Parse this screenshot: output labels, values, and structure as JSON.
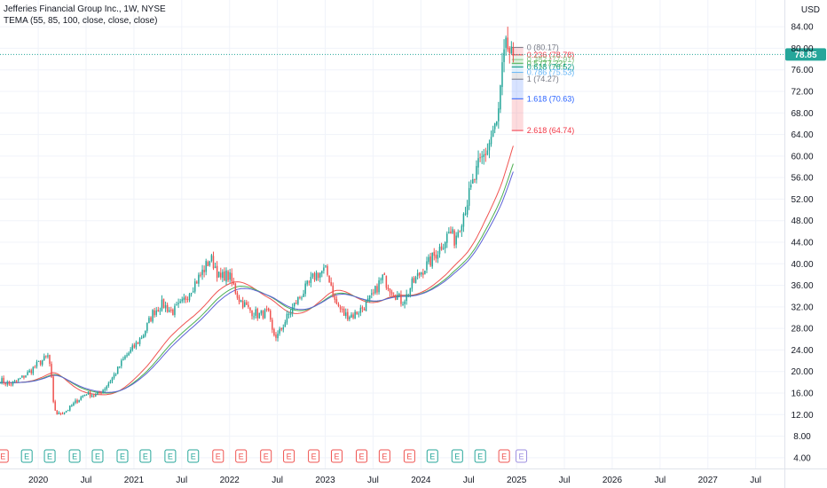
{
  "legend": {
    "symbol_line": "Jefferies Financial Group Inc., 1W, NYSE",
    "indicator_line": "TEMA (55, 85, 100, close, close, close)"
  },
  "currency": "USD",
  "colors": {
    "up": "#26a69a",
    "down": "#ef5350",
    "tema_55": "#f05350",
    "tema_85": "#4caf50",
    "tema_100": "#5b61d6",
    "price_line": "#26a69a"
  },
  "chart_data": {
    "type": "candlestick",
    "title": "Jefferies Financial Group Inc., 1W, NYSE",
    "xlabel": "",
    "ylabel": "USD",
    "ylim": [
      2,
      86
    ],
    "y_ticks": [
      4,
      8,
      12,
      16,
      20,
      24,
      28,
      32,
      36,
      40,
      44,
      48,
      52,
      56,
      60,
      64,
      68,
      72,
      76,
      80,
      84
    ],
    "y_tick_labels": [
      "4.00",
      "8.00",
      "12.00",
      "16.00",
      "20.00",
      "24.00",
      "28.00",
      "32.00",
      "36.00",
      "40.00",
      "44.00",
      "48.00",
      "52.00",
      "56.00",
      "60.00",
      "64.00",
      "68.00",
      "72.00",
      "76.00",
      "80.00",
      "84.00"
    ],
    "x_range": [
      2019.6,
      2027.8
    ],
    "x_ticks": [
      {
        "t": 2020.0,
        "label": "2020"
      },
      {
        "t": 2020.5,
        "label": "Jul"
      },
      {
        "t": 2021.0,
        "label": "2021"
      },
      {
        "t": 2021.5,
        "label": "Jul"
      },
      {
        "t": 2022.0,
        "label": "2022"
      },
      {
        "t": 2022.5,
        "label": "Jul"
      },
      {
        "t": 2023.0,
        "label": "2023"
      },
      {
        "t": 2023.5,
        "label": "Jul"
      },
      {
        "t": 2024.0,
        "label": "2024"
      },
      {
        "t": 2024.5,
        "label": "Jul"
      },
      {
        "t": 2025.0,
        "label": "2025"
      },
      {
        "t": 2025.5,
        "label": "Jul"
      },
      {
        "t": 2026.0,
        "label": "2026"
      },
      {
        "t": 2026.5,
        "label": "Jul"
      },
      {
        "t": 2027.0,
        "label": "2027"
      },
      {
        "t": 2027.5,
        "label": "Jul"
      }
    ],
    "price_path": [
      [
        2019.6,
        18.5
      ],
      [
        2019.7,
        17.5
      ],
      [
        2019.8,
        18.5
      ],
      [
        2019.9,
        19.8
      ],
      [
        2020.0,
        21.5
      ],
      [
        2020.1,
        22.8
      ],
      [
        2020.13,
        20.5
      ],
      [
        2020.16,
        13.5
      ],
      [
        2020.2,
        12.0
      ],
      [
        2020.3,
        12.8
      ],
      [
        2020.4,
        14.5
      ],
      [
        2020.5,
        16.0
      ],
      [
        2020.6,
        15.5
      ],
      [
        2020.7,
        17.0
      ],
      [
        2020.8,
        19.5
      ],
      [
        2020.9,
        22.5
      ],
      [
        2021.0,
        24.5
      ],
      [
        2021.1,
        27.0
      ],
      [
        2021.2,
        31.0
      ],
      [
        2021.3,
        32.5
      ],
      [
        2021.4,
        31.0
      ],
      [
        2021.5,
        32.5
      ],
      [
        2021.6,
        35.5
      ],
      [
        2021.7,
        38.0
      ],
      [
        2021.8,
        41.0
      ],
      [
        2021.85,
        39.5
      ],
      [
        2021.9,
        37.0
      ],
      [
        2021.95,
        38.0
      ],
      [
        2022.0,
        37.5
      ],
      [
        2022.1,
        33.5
      ],
      [
        2022.2,
        31.5
      ],
      [
        2022.3,
        30.5
      ],
      [
        2022.4,
        31.0
      ],
      [
        2022.45,
        27.0
      ],
      [
        2022.5,
        26.5
      ],
      [
        2022.6,
        30.0
      ],
      [
        2022.7,
        33.0
      ],
      [
        2022.8,
        35.5
      ],
      [
        2022.9,
        38.0
      ],
      [
        2023.0,
        38.8
      ],
      [
        2023.05,
        37.0
      ],
      [
        2023.1,
        33.0
      ],
      [
        2023.2,
        30.5
      ],
      [
        2023.3,
        30.5
      ],
      [
        2023.4,
        32.0
      ],
      [
        2023.5,
        34.0
      ],
      [
        2023.55,
        36.0
      ],
      [
        2023.6,
        37.5
      ],
      [
        2023.7,
        35.0
      ],
      [
        2023.8,
        33.0
      ],
      [
        2023.85,
        34.0
      ],
      [
        2023.9,
        36.0
      ],
      [
        2024.0,
        38.5
      ],
      [
        2024.1,
        40.5
      ],
      [
        2024.2,
        43.0
      ],
      [
        2024.3,
        46.0
      ],
      [
        2024.35,
        44.5
      ],
      [
        2024.4,
        47.0
      ],
      [
        2024.5,
        52.5
      ],
      [
        2024.6,
        58.0
      ],
      [
        2024.7,
        61.5
      ],
      [
        2024.75,
        64.5
      ],
      [
        2024.8,
        66.0
      ],
      [
        2024.83,
        72.0
      ],
      [
        2024.86,
        77.5
      ],
      [
        2024.9,
        80.5
      ],
      [
        2024.93,
        79.0
      ],
      [
        2024.96,
        77.5
      ],
      [
        2024.98,
        78.85
      ]
    ],
    "fib_levels": [
      {
        "label": "0 (80.17)",
        "value": 80.17,
        "color": "#787b86"
      },
      {
        "label": "0.236 (78.78)",
        "value": 78.78,
        "color": "#f23645"
      },
      {
        "label": "0.382 (77.91)",
        "value": 77.91,
        "color": "#81c784"
      },
      {
        "label": "0.5 (77.22)",
        "value": 77.22,
        "color": "#4caf50"
      },
      {
        "label": "0.618 (76.52)",
        "value": 76.52,
        "color": "#089981"
      },
      {
        "label": "0.786 (75.53)",
        "value": 75.53,
        "color": "#64b5f6"
      },
      {
        "label": "1 (74.27)",
        "value": 74.27,
        "color": "#787b86"
      },
      {
        "label": "1.618 (70.63)",
        "value": 70.63,
        "color": "#2962ff"
      },
      {
        "label": "2.618 (64.74)",
        "value": 64.74,
        "color": "#f23645"
      }
    ],
    "last_price": {
      "value": 78.85,
      "label": "78.85"
    },
    "earnings_markers": [
      {
        "t": 2019.63,
        "kind": "down"
      },
      {
        "t": 2019.88,
        "kind": "up"
      },
      {
        "t": 2020.12,
        "kind": "up"
      },
      {
        "t": 2020.38,
        "kind": "up"
      },
      {
        "t": 2020.62,
        "kind": "up"
      },
      {
        "t": 2020.88,
        "kind": "up"
      },
      {
        "t": 2021.12,
        "kind": "up"
      },
      {
        "t": 2021.38,
        "kind": "up"
      },
      {
        "t": 2021.62,
        "kind": "up"
      },
      {
        "t": 2021.88,
        "kind": "down"
      },
      {
        "t": 2022.12,
        "kind": "down"
      },
      {
        "t": 2022.38,
        "kind": "down"
      },
      {
        "t": 2022.62,
        "kind": "down"
      },
      {
        "t": 2022.88,
        "kind": "down"
      },
      {
        "t": 2023.12,
        "kind": "down"
      },
      {
        "t": 2023.38,
        "kind": "down"
      },
      {
        "t": 2023.62,
        "kind": "down"
      },
      {
        "t": 2023.88,
        "kind": "down"
      },
      {
        "t": 2024.12,
        "kind": "up"
      },
      {
        "t": 2024.38,
        "kind": "up"
      },
      {
        "t": 2024.62,
        "kind": "up"
      },
      {
        "t": 2024.87,
        "kind": "down"
      },
      {
        "t": 2025.05,
        "kind": "future"
      }
    ],
    "earnings_marker_label": "E"
  }
}
